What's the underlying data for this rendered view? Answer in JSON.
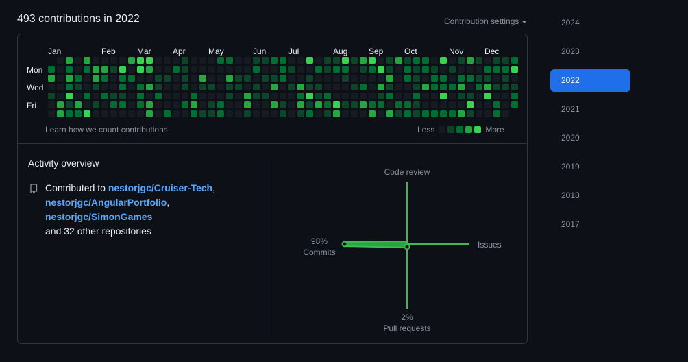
{
  "header": {
    "title": "493 contributions in 2022",
    "settings_label": "Contribution settings"
  },
  "calendar": {
    "months": [
      "Jan",
      "Feb",
      "Mar",
      "Apr",
      "May",
      "Jun",
      "Jul",
      "Aug",
      "Sep",
      "Oct",
      "Nov",
      "Dec"
    ],
    "days": [
      "Mon",
      "Wed",
      "Fri"
    ],
    "learn_link": "Learn how we count contributions",
    "legend_less": "Less",
    "legend_more": "More",
    "level_colors": [
      "#161b22",
      "#0e4429",
      "#006d32",
      "#26a641",
      "#39d353"
    ]
  },
  "activity": {
    "title": "Activity overview",
    "contributed_prefix": "Contributed to",
    "repos": [
      "nestorjgc/Cruiser-Tech",
      "nestorjgc/AngularPortfolio",
      "nestorjgc/SimonGames"
    ],
    "others": "and 32 other repositories",
    "radar": {
      "code_review_label": "Code review",
      "issues_label": "Issues",
      "commits_label": "Commits",
      "commits_pct": "98%",
      "pull_requests_label": "Pull requests",
      "pull_requests_pct": "2%"
    }
  },
  "years": [
    "2024",
    "2023",
    "2022",
    "2021",
    "2020",
    "2019",
    "2018",
    "2017"
  ],
  "selected_year": "2022"
}
